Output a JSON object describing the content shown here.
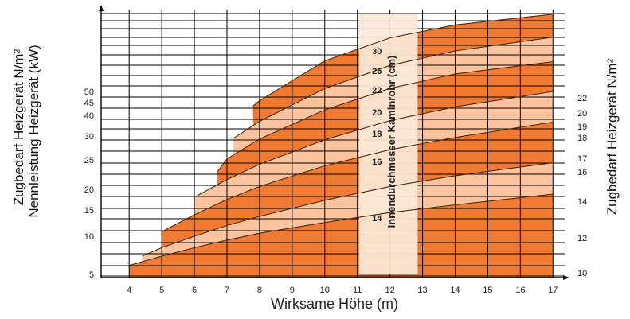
{
  "chart_data": {
    "type": "area",
    "xlabel": "Wirksame Höhe (m)",
    "ylabel_left_outer": "Zugbedarf Heizgerät N/m²",
    "ylabel_left_inner": "Nennleistung Heizgerät (kW)",
    "ylabel_right": "Zugbedarf Heizgerät N/m²",
    "band_label": "Innendurchmesser Kaminrohr (cm)",
    "x_ticks": [
      "4",
      "5",
      "6",
      "7",
      "8",
      "9",
      "10",
      "11",
      "12",
      "13",
      "14",
      "15",
      "16",
      "17"
    ],
    "y_left_ticks": [
      "5",
      "10",
      "15",
      "20",
      "25",
      "30",
      "40",
      "45",
      "50"
    ],
    "y_right_ticks": [
      "10",
      "12",
      "14",
      "16",
      "17",
      "18",
      "19",
      "20",
      "22"
    ],
    "diameters": [
      "14",
      "16",
      "18",
      "20",
      "22",
      "25",
      "30"
    ],
    "series": [
      {
        "name": "14",
        "x": [
          4,
          5,
          6,
          7,
          8,
          10,
          12,
          14,
          17
        ],
        "y": [
          11.6,
          12.8,
          13.9,
          14.9,
          15.8,
          17.2,
          18.5,
          19.5,
          20.9
        ]
      },
      {
        "name": "16",
        "x": [
          4.4,
          5,
          6,
          7,
          8,
          10,
          12,
          14,
          17
        ],
        "y": [
          12.8,
          13.9,
          15.4,
          16.8,
          18.0,
          20.1,
          21.9,
          23.3,
          25.0
        ]
      },
      {
        "name": "18",
        "x": [
          5,
          6,
          7,
          8,
          10,
          12,
          14,
          17
        ],
        "y": [
          16.0,
          18.2,
          20.2,
          21.9,
          24.6,
          26.7,
          28.3,
          30.3
        ]
      },
      {
        "name": "20",
        "x": [
          6,
          7,
          8,
          10,
          12,
          14,
          17
        ],
        "y": [
          20.5,
          22.8,
          24.8,
          28.0,
          30.5,
          32.3,
          34.3
        ]
      },
      {
        "name": "22",
        "x": [
          6.7,
          7,
          8,
          10,
          12,
          14,
          17
        ],
        "y": [
          23.8,
          25.5,
          28.1,
          31.9,
          34.7,
          36.6,
          38.2
        ]
      },
      {
        "name": "25",
        "x": [
          7.2,
          8,
          10,
          12,
          14,
          17
        ],
        "y": [
          28.2,
          30.4,
          34.7,
          37.7,
          39.6,
          41.4
        ]
      },
      {
        "name": "30",
        "x": [
          7.8,
          8,
          10,
          12,
          14,
          17
        ],
        "y": [
          32.4,
          33.1,
          38.3,
          41.3,
          43.0,
          44.4
        ]
      }
    ],
    "colors": {
      "dark": "#F07A32",
      "light": "#FBC49F",
      "band": "#FCEAD8",
      "grid": "#000000"
    }
  }
}
